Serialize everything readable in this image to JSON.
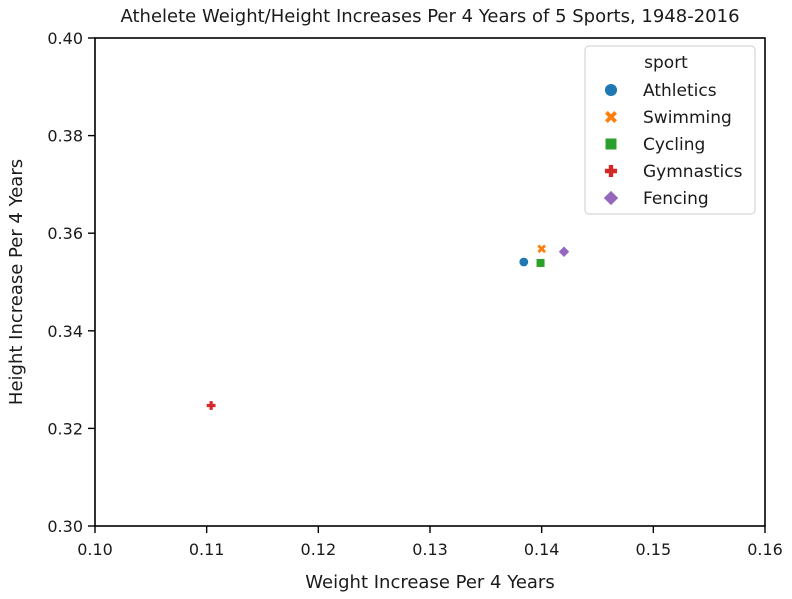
{
  "chart_data": {
    "type": "scatter",
    "title": "Athelete Weight/Height Increases Per 4 Years of 5 Sports, 1948-2016",
    "xlabel": "Weight Increase Per 4 Years",
    "ylabel": "Height Increase Per 4 Years",
    "xlim": [
      0.1,
      0.16
    ],
    "ylim": [
      0.3,
      0.4
    ],
    "xticks": [
      "0.10",
      "0.11",
      "0.12",
      "0.13",
      "0.14",
      "0.15",
      "0.16"
    ],
    "yticks": [
      "0.30",
      "0.32",
      "0.34",
      "0.36",
      "0.38",
      "0.40"
    ],
    "grid": false,
    "legend": {
      "title": "sport",
      "placement": "top-right"
    },
    "series": [
      {
        "name": "Athletics",
        "marker": "circle",
        "color": "#1f77b4",
        "x": 0.1384,
        "y": 0.3541
      },
      {
        "name": "Swimming",
        "marker": "x",
        "color": "#ff7f0e",
        "x": 0.14,
        "y": 0.3568
      },
      {
        "name": "Cycling",
        "marker": "square",
        "color": "#2ca02c",
        "x": 0.1399,
        "y": 0.3539
      },
      {
        "name": "Gymnastics",
        "marker": "plus",
        "color": "#d62728",
        "x": 0.1104,
        "y": 0.3247
      },
      {
        "name": "Fencing",
        "marker": "diamond",
        "color": "#9467bd",
        "x": 0.142,
        "y": 0.3562
      }
    ]
  }
}
